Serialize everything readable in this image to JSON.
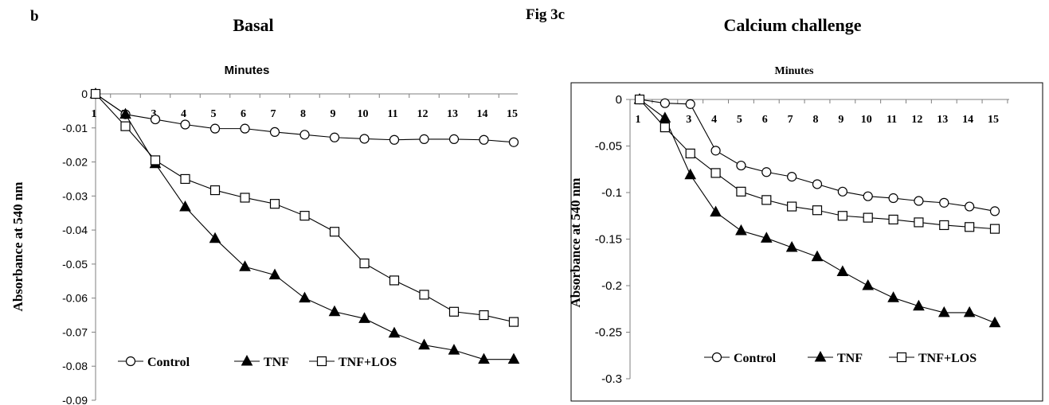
{
  "figure": {
    "panel_letter": "b",
    "fig_label": "Fig 3c"
  },
  "chart_data": [
    {
      "type": "line",
      "title": "Basal",
      "top_axis_label": "Minutes",
      "xlabel": "",
      "ylabel": "Absorbance  at 540 nm",
      "categories": [
        "1",
        "2",
        "3",
        "4",
        "5",
        "6",
        "7",
        "8",
        "9",
        "10",
        "11",
        "12",
        "13",
        "14",
        "15"
      ],
      "ylim": [
        -0.09,
        0
      ],
      "yticks": [
        0,
        -0.01,
        -0.02,
        -0.03,
        -0.04,
        -0.05,
        -0.06,
        -0.07,
        -0.08,
        -0.09
      ],
      "ytick_labels": [
        "0",
        "-0.01",
        "-0.02",
        "-0.03",
        "-0.04",
        "-0.05",
        "-0.06",
        "-0.07",
        "-0.08",
        "-0.09"
      ],
      "x_axis_position": "top",
      "grid": false,
      "legend_position": "bottom",
      "series": [
        {
          "name": "Control",
          "marker": "circle-open",
          "values": [
            0,
            -0.006,
            -0.0075,
            -0.009,
            -0.0102,
            -0.0102,
            -0.0112,
            -0.012,
            -0.0128,
            -0.0132,
            -0.0135,
            -0.0133,
            -0.0133,
            -0.0135,
            -0.0142
          ]
        },
        {
          "name": "TNF",
          "marker": "triangle-filled",
          "values": [
            0,
            -0.006,
            -0.0205,
            -0.0332,
            -0.0425,
            -0.0508,
            -0.0532,
            -0.06,
            -0.064,
            -0.066,
            -0.0703,
            -0.0738,
            -0.0753,
            -0.078,
            -0.078
          ]
        },
        {
          "name": "TNF+LOS",
          "marker": "square-open",
          "values": [
            0,
            -0.0095,
            -0.0195,
            -0.025,
            -0.0283,
            -0.0305,
            -0.0323,
            -0.0358,
            -0.0405,
            -0.0498,
            -0.0548,
            -0.059,
            -0.064,
            -0.065,
            -0.067
          ]
        }
      ]
    },
    {
      "type": "line",
      "title": "Calcium challenge",
      "top_axis_label": "Minutes",
      "xlabel": "",
      "ylabel": "Absorbance  at 540 nm",
      "categories": [
        "1",
        "2",
        "3",
        "4",
        "5",
        "6",
        "7",
        "8",
        "9",
        "10",
        "11",
        "12",
        "13",
        "14",
        "15"
      ],
      "ylim": [
        -0.3,
        0
      ],
      "yticks": [
        0,
        -0.05,
        -0.1,
        -0.15,
        -0.2,
        -0.25,
        -0.3
      ],
      "ytick_labels": [
        "0",
        "-0.05",
        "-0.1",
        "-0.15",
        "-0.2",
        "-0.25",
        "-0.3"
      ],
      "x_axis_position": "top",
      "grid": false,
      "legend_position": "bottom",
      "series": [
        {
          "name": "Control",
          "marker": "circle-open",
          "values": [
            0,
            -0.004,
            -0.005,
            -0.055,
            -0.071,
            -0.078,
            -0.083,
            -0.091,
            -0.099,
            -0.104,
            -0.106,
            -0.109,
            -0.111,
            -0.115,
            -0.12
          ]
        },
        {
          "name": "TNF",
          "marker": "triangle-filled",
          "values": [
            0,
            -0.02,
            -0.081,
            -0.121,
            -0.141,
            -0.149,
            -0.159,
            -0.169,
            -0.185,
            -0.2,
            -0.213,
            -0.222,
            -0.229,
            -0.229,
            -0.24
          ]
        },
        {
          "name": "TNF+LOS",
          "marker": "square-open",
          "values": [
            0,
            -0.03,
            -0.058,
            -0.079,
            -0.099,
            -0.108,
            -0.115,
            -0.119,
            -0.125,
            -0.127,
            -0.129,
            -0.132,
            -0.135,
            -0.137,
            -0.139
          ]
        }
      ]
    }
  ]
}
